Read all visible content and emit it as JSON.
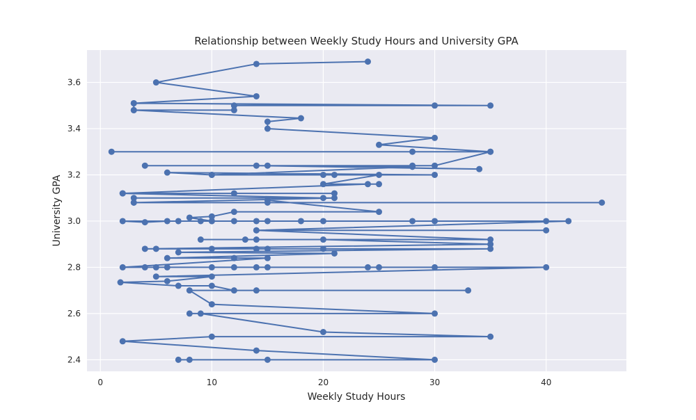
{
  "chart_data": {
    "type": "line",
    "title": "Relationship between Weekly Study Hours and University GPA",
    "xlabel": "Weekly Study Hours",
    "ylabel": "University GPA",
    "xlim": [
      -1.2,
      47.2
    ],
    "ylim": [
      2.35,
      3.74
    ],
    "xticks": [
      0,
      10,
      20,
      30,
      40
    ],
    "yticks": [
      2.4,
      2.6,
      2.8,
      3.0,
      3.2,
      3.4,
      3.6
    ],
    "ytick_labels": [
      "2.4",
      "2.6",
      "2.8",
      "3.0",
      "3.2",
      "3.4",
      "3.6"
    ],
    "grid": true,
    "marker": "circle",
    "series": [
      {
        "color": "#4c72b0",
        "points": [
          [
            24,
            3.69
          ],
          [
            14,
            3.68
          ],
          [
            5,
            3.6
          ],
          [
            14,
            3.54
          ],
          [
            3,
            3.51
          ],
          [
            30,
            3.5
          ],
          [
            12,
            3.5
          ],
          [
            35,
            3.5
          ],
          [
            3,
            3.51
          ],
          [
            3,
            3.48
          ],
          [
            12,
            3.48
          ],
          [
            3,
            3.48
          ],
          [
            18,
            3.445
          ],
          [
            15,
            3.43
          ],
          [
            15,
            3.4
          ],
          [
            30,
            3.36
          ],
          [
            25,
            3.33
          ],
          [
            35,
            3.3
          ],
          [
            28,
            3.3
          ],
          [
            1,
            3.3
          ],
          [
            35,
            3.3
          ],
          [
            30,
            3.24
          ],
          [
            28,
            3.24
          ],
          [
            4,
            3.24
          ],
          [
            14,
            3.24
          ],
          [
            34,
            3.225
          ],
          [
            15,
            3.24
          ],
          [
            28,
            3.235
          ],
          [
            10,
            3.2
          ],
          [
            6,
            3.21
          ],
          [
            30,
            3.2
          ],
          [
            20,
            3.2
          ],
          [
            21,
            3.2
          ],
          [
            10,
            3.2
          ],
          [
            25,
            3.2
          ],
          [
            20,
            3.16
          ],
          [
            25,
            3.16
          ],
          [
            24,
            3.16
          ],
          [
            2,
            3.12
          ],
          [
            21,
            3.12
          ],
          [
            12,
            3.12
          ],
          [
            2,
            3.12
          ],
          [
            20,
            3.1
          ],
          [
            3,
            3.1
          ],
          [
            21,
            3.1
          ],
          [
            3,
            3.08
          ],
          [
            45,
            3.08
          ],
          [
            3,
            3.08
          ],
          [
            15,
            3.08
          ],
          [
            15,
            3.09
          ],
          [
            25,
            3.04
          ],
          [
            12,
            3.04
          ],
          [
            10,
            3.02
          ],
          [
            8,
            3.015
          ],
          [
            10,
            3.0
          ],
          [
            2,
            3.0
          ],
          [
            4,
            2.995
          ],
          [
            6,
            3.0
          ],
          [
            7,
            3.0
          ],
          [
            9,
            3.0
          ],
          [
            10,
            3.0
          ],
          [
            12,
            3.0
          ],
          [
            14,
            3.0
          ],
          [
            15,
            3.0
          ],
          [
            18,
            3.0
          ],
          [
            20,
            3.0
          ],
          [
            28,
            3.0
          ],
          [
            30,
            3.0
          ],
          [
            40,
            3.0
          ],
          [
            42,
            3.0
          ],
          [
            14,
            2.96
          ],
          [
            40,
            2.96
          ],
          [
            14,
            2.96
          ],
          [
            35,
            2.92
          ],
          [
            9,
            2.92
          ],
          [
            13,
            2.92
          ],
          [
            14,
            2.92
          ],
          [
            20,
            2.92
          ],
          [
            35,
            2.9
          ],
          [
            4,
            2.88
          ],
          [
            5,
            2.88
          ],
          [
            10,
            2.88
          ],
          [
            14,
            2.88
          ],
          [
            15,
            2.88
          ],
          [
            20,
            2.88
          ],
          [
            35,
            2.88
          ],
          [
            7,
            2.865
          ],
          [
            21,
            2.86
          ],
          [
            6,
            2.84
          ],
          [
            12,
            2.84
          ],
          [
            15,
            2.84
          ],
          [
            2,
            2.8
          ],
          [
            4,
            2.8
          ],
          [
            5,
            2.8
          ],
          [
            6,
            2.8
          ],
          [
            10,
            2.8
          ],
          [
            12,
            2.8
          ],
          [
            14,
            2.8
          ],
          [
            15,
            2.8
          ],
          [
            24,
            2.8
          ],
          [
            25,
            2.8
          ],
          [
            30,
            2.8
          ],
          [
            40,
            2.8
          ],
          [
            5,
            2.76
          ],
          [
            10,
            2.76
          ],
          [
            6,
            2.74
          ],
          [
            1.8,
            2.735
          ],
          [
            7,
            2.72
          ],
          [
            10,
            2.72
          ],
          [
            12,
            2.7
          ],
          [
            14,
            2.7
          ],
          [
            33,
            2.7
          ],
          [
            8,
            2.7
          ],
          [
            10,
            2.64
          ],
          [
            30,
            2.6
          ],
          [
            8,
            2.6
          ],
          [
            9,
            2.6
          ],
          [
            20,
            2.52
          ],
          [
            35,
            2.5
          ],
          [
            10,
            2.5
          ],
          [
            2,
            2.48
          ],
          [
            14,
            2.44
          ],
          [
            30,
            2.4
          ],
          [
            15,
            2.4
          ],
          [
            8,
            2.4
          ],
          [
            7,
            2.4
          ]
        ]
      }
    ]
  }
}
